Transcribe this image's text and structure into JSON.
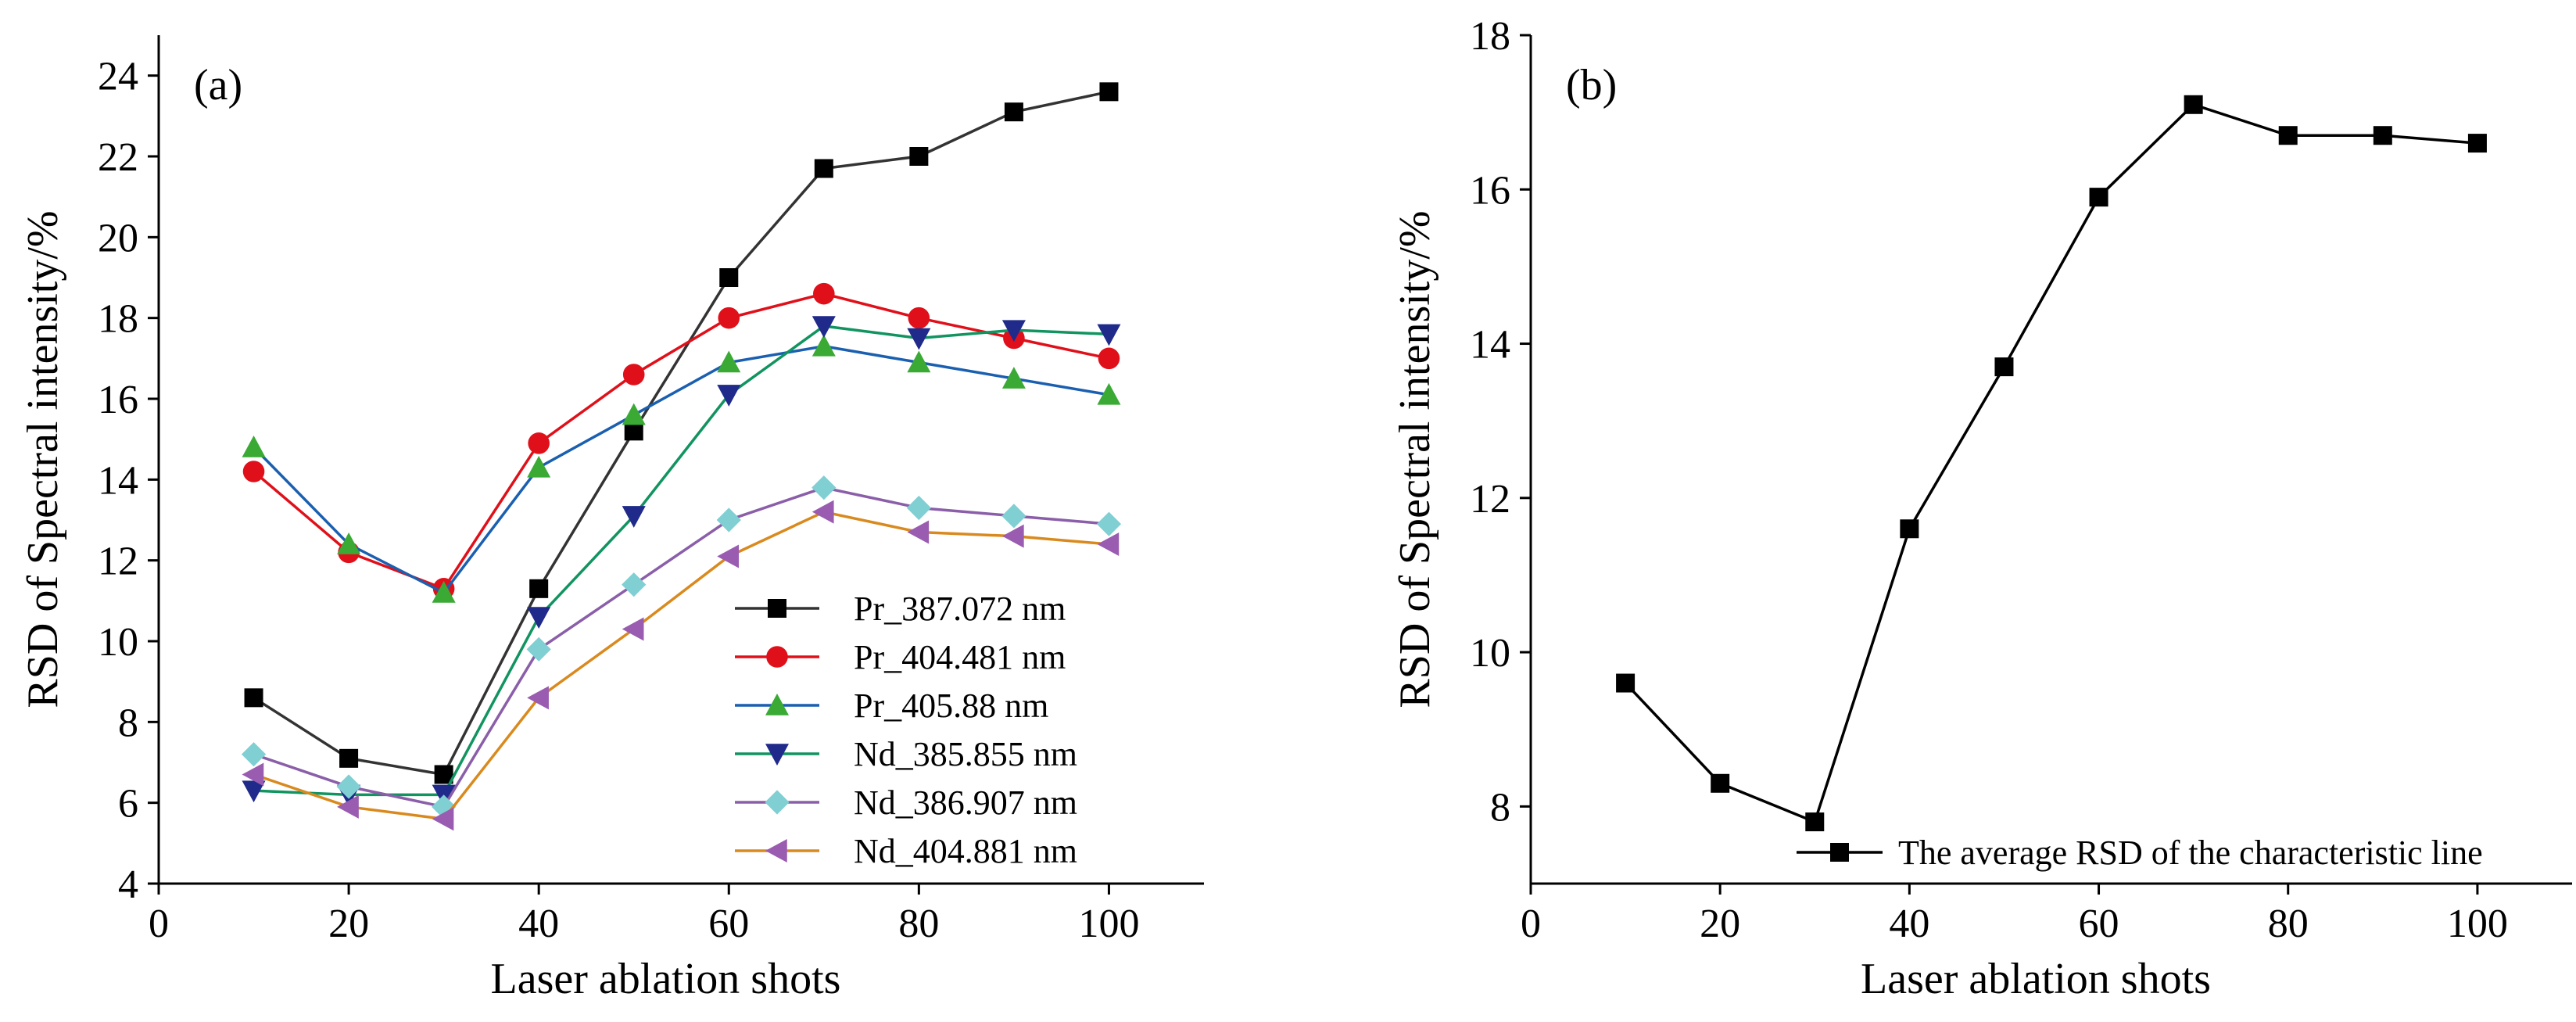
{
  "chart_data": [
    {
      "type": "line",
      "panel_label": "(a)",
      "xlabel": "Laser ablation shots",
      "ylabel": "RSD of Spectral intensity/%",
      "xlim": [
        0,
        110
      ],
      "ylim": [
        4,
        25
      ],
      "xticks": [
        0,
        20,
        40,
        60,
        80,
        100
      ],
      "yticks": [
        4,
        6,
        8,
        10,
        12,
        14,
        16,
        18,
        20,
        22,
        24
      ],
      "grid": false,
      "legend_position": "bottom-right",
      "x": [
        10,
        20,
        30,
        40,
        50,
        60,
        70,
        80,
        90,
        100
      ],
      "series": [
        {
          "name": "Pr_387.072 nm",
          "marker": "square",
          "color": "#000000",
          "line_color": "#333333",
          "values": [
            8.6,
            7.1,
            6.7,
            11.3,
            15.2,
            19.0,
            21.7,
            22.0,
            23.1,
            23.6
          ]
        },
        {
          "name": "Pr_404.481 nm",
          "marker": "circle",
          "color": "#e0101a",
          "line_color": "#e0101a",
          "values": [
            14.2,
            12.2,
            11.3,
            14.9,
            16.6,
            18.0,
            18.6,
            18.0,
            17.5,
            17.0
          ]
        },
        {
          "name": "Pr_405.88 nm",
          "marker": "triangle-up",
          "color": "#3aaa35",
          "line_color": "#1a5fb0",
          "values": [
            14.8,
            12.4,
            11.2,
            14.3,
            15.6,
            16.9,
            17.3,
            16.9,
            16.5,
            16.1
          ]
        },
        {
          "name": "Nd_385.855 nm",
          "marker": "triangle-down",
          "color": "#1f2a8a",
          "line_color": "#119460",
          "values": [
            6.3,
            6.2,
            6.2,
            10.6,
            13.1,
            16.1,
            17.8,
            17.5,
            17.7,
            17.6
          ]
        },
        {
          "name": "Nd_386.907 nm",
          "marker": "diamond",
          "color": "#7fcfd3",
          "line_color": "#8a5ea8",
          "values": [
            7.2,
            6.4,
            5.9,
            9.8,
            11.4,
            13.0,
            13.8,
            13.3,
            13.1,
            12.9
          ]
        },
        {
          "name": "Nd_404.881 nm",
          "marker": "triangle-left",
          "color": "#9a5cb0",
          "line_color": "#d98a1e",
          "values": [
            6.7,
            5.9,
            5.6,
            8.6,
            10.3,
            12.1,
            13.2,
            12.7,
            12.6,
            12.4
          ]
        }
      ]
    },
    {
      "type": "line",
      "panel_label": "(b)",
      "xlabel": "Laser ablation shots",
      "ylabel": "RSD of Spectral intensity/%",
      "xlim": [
        0,
        110
      ],
      "ylim": [
        7,
        18
      ],
      "xticks": [
        0,
        20,
        40,
        60,
        80,
        100
      ],
      "yticks": [
        8,
        10,
        12,
        14,
        16,
        18
      ],
      "grid": false,
      "legend_position": "bottom-right",
      "x": [
        10,
        20,
        30,
        40,
        50,
        60,
        70,
        80,
        90,
        100
      ],
      "series": [
        {
          "name": "The average RSD of the characteristic line",
          "marker": "square",
          "color": "#000000",
          "line_color": "#000000",
          "values": [
            9.6,
            8.3,
            7.8,
            11.6,
            13.7,
            15.9,
            17.1,
            16.7,
            16.7,
            16.6
          ]
        }
      ]
    }
  ]
}
